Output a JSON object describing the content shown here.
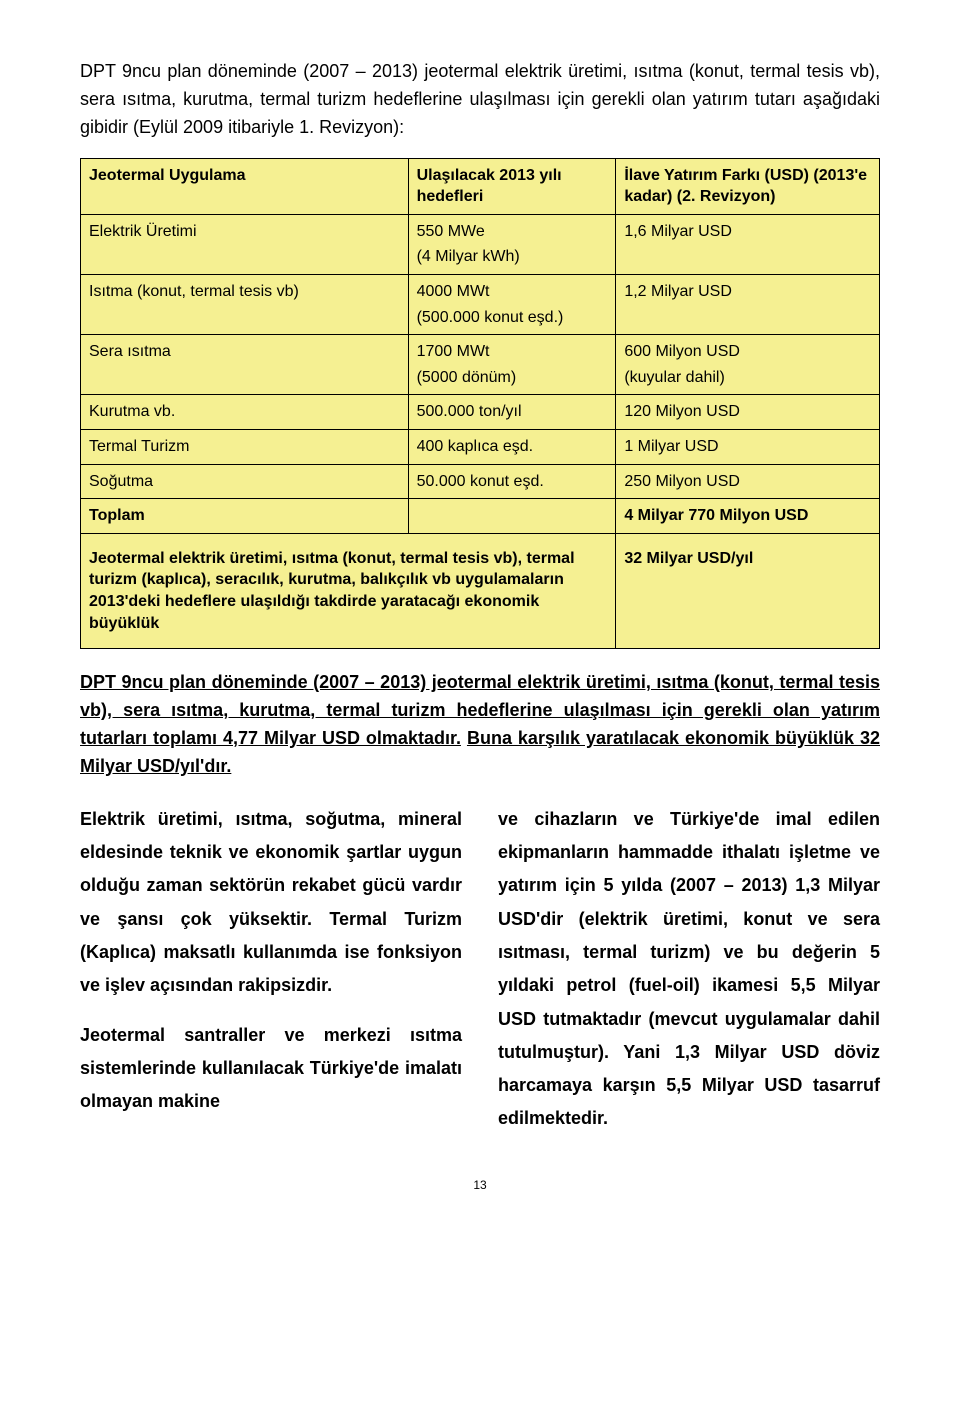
{
  "intro": {
    "text": "DPT 9ncu plan döneminde (2007 – 2013) jeotermal elektrik üretimi, ısıtma (konut, termal tesis vb), sera ısıtma, kurutma, termal turizm hedeflerine ulaşılması için gerekli olan yatırım tutarı aşağıdaki gibidir (Eylül 2009 itibariyle 1. Revizyon):"
  },
  "table": {
    "bg": "#f5f092",
    "header": {
      "app": "Jeotermal Uygulama",
      "target": "Ulaşılacak 2013 yılı hedefleri",
      "value": "İlave Yatırım Farkı (USD) (2013'e kadar) (2. Revizyon)"
    },
    "rows": [
      {
        "app": "Elektrik Üretimi",
        "target_main": "550 MWe",
        "target_sub": "(4 Milyar kWh)",
        "value": "1,6 Milyar USD"
      },
      {
        "app": "Isıtma (konut, termal tesis vb)",
        "target_main": "4000 MWt",
        "target_sub": "(500.000 konut eşd.)",
        "value": "1,2 Milyar USD"
      },
      {
        "app": "Sera ısıtma",
        "target_main": "1700 MWt",
        "target_sub": "(5000 dönüm)",
        "value_main": "600 Milyon USD",
        "value_sub": "(kuyular dahil)"
      },
      {
        "app": "Kurutma vb.",
        "target_main": "500.000 ton/yıl",
        "value": "120 Milyon USD"
      },
      {
        "app": "Termal Turizm",
        "target_main": "400 kaplıca eşd.",
        "value": "1 Milyar USD"
      },
      {
        "app": "Soğutma",
        "target_main": "50.000 konut eşd.",
        "value": "250 Milyon USD"
      }
    ],
    "total": {
      "app": "Toplam",
      "value": "4 Milyar 770 Milyon USD"
    },
    "footer": {
      "app": "Jeotermal elektrik üretimi, ısıtma (konut, termal tesis vb), termal turizm (kaplıca), seracılık, kurutma, balıkçılık vb uygulamaların 2013'deki hedeflere ulaşıldığı takdirde yaratacağı ekonomik büyüklük",
      "value": "32 Milyar USD/yıl"
    }
  },
  "summary": {
    "line1": "DPT 9ncu plan döneminde (2007 – 2013) jeotermal elektrik üretimi, ısıtma (konut, termal tesis vb), sera ısıtma, kurutma, termal turizm hedeflerine ulaşılması için gerekli olan yatırım tutarları toplamı 4,77 Milyar USD olmaktadır.",
    "line2": "Buna karşılık yaratılacak ekonomik büyüklük 32 Milyar USD/yıl'dır."
  },
  "col_left": {
    "p1": "Elektrik üretimi, ısıtma, soğutma, mineral eldesinde teknik ve ekonomik şartlar uygun olduğu zaman sektörün rekabet gücü vardır ve şansı çok yüksektir. Termal Turizm (Kaplıca) maksatlı kullanımda ise fonksiyon ve işlev açısından rakipsizdir.",
    "p2": "Jeotermal santraller ve merkezi ısıtma sistemlerinde kullanılacak Türkiye'de imalatı olmayan makine"
  },
  "col_right": {
    "p1": "ve cihazların ve Türkiye'de imal edilen ekipmanların hammadde ithalatı işletme ve yatırım için 5 yılda (2007 – 2013) 1,3 Milyar USD'dir (elektrik üretimi, konut ve sera ısıtması, termal turizm) ve bu değerin 5 yıldaki petrol (fuel-oil) ikamesi 5,5 Milyar USD tutmaktadır (mevcut uygulamalar dahil tutulmuştur). Yani 1,3 Milyar USD döviz harcamaya karşın 5,5 Milyar USD tasarruf edilmektedir."
  },
  "page_number": "13"
}
